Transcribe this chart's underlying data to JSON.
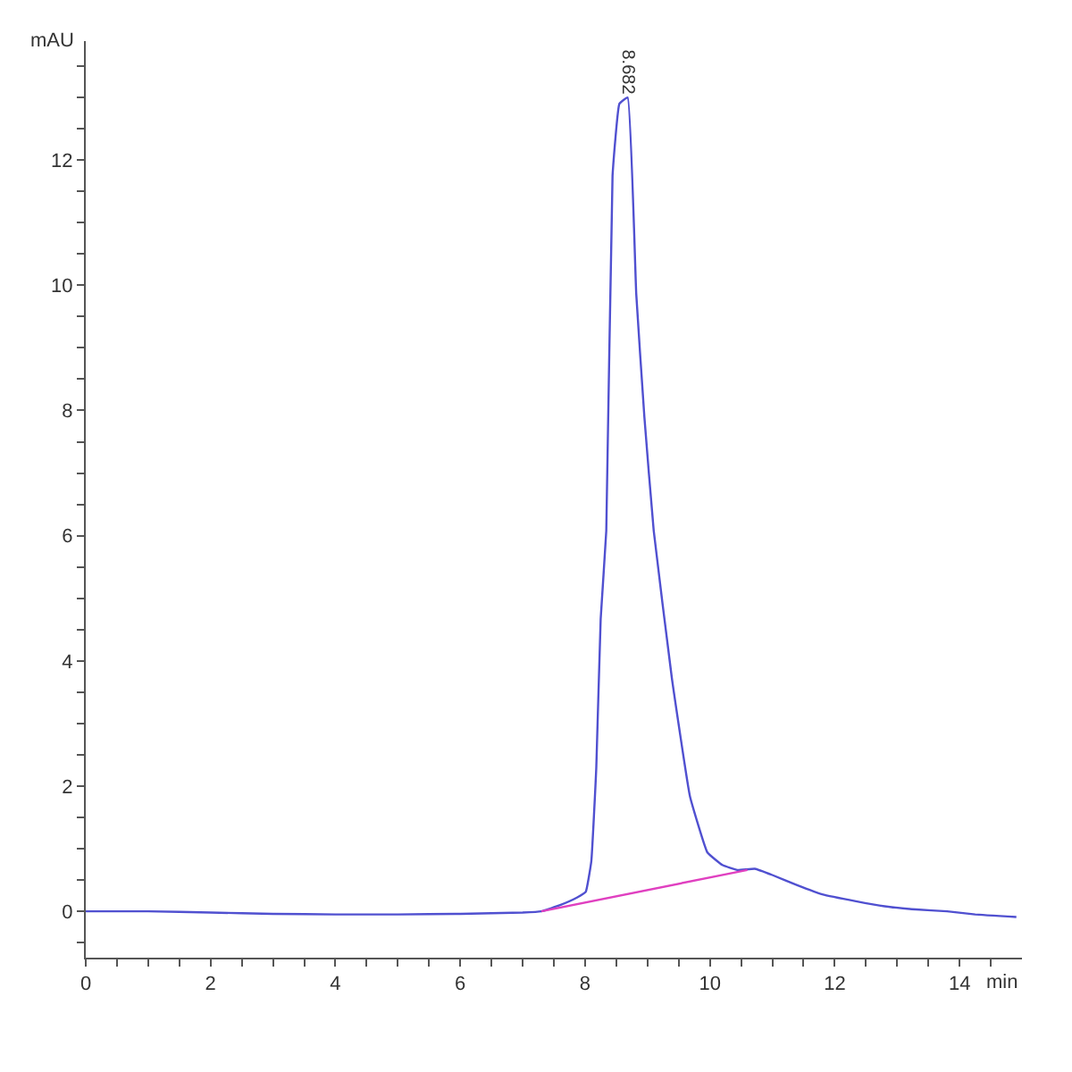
{
  "chart_data": {
    "type": "line",
    "xlabel": "min",
    "ylabel": "mAU",
    "xlim": [
      0,
      15
    ],
    "ylim": [
      -0.74,
      13.9
    ],
    "xticks": [
      0,
      {
        "value": 0.5,
        "label": null
      },
      {
        "value": 1,
        "label": null
      },
      {
        "value": 1.5,
        "label": null
      },
      2,
      {
        "value": 2.5,
        "label": null
      },
      {
        "value": 3,
        "label": null
      },
      {
        "value": 3.5,
        "label": null
      },
      4,
      {
        "value": 4.5,
        "label": null
      },
      {
        "value": 5,
        "label": null
      },
      {
        "value": 5.5,
        "label": null
      },
      6,
      {
        "value": 6.5,
        "label": null
      },
      {
        "value": 7,
        "label": null
      },
      {
        "value": 7.5,
        "label": null
      },
      8,
      {
        "value": 8.5,
        "label": null
      },
      {
        "value": 9,
        "label": null
      },
      {
        "value": 9.5,
        "label": null
      },
      10,
      {
        "value": 10.5,
        "label": null
      },
      {
        "value": 11,
        "label": null
      },
      {
        "value": 11.5,
        "label": null
      },
      12,
      {
        "value": 12.5,
        "label": null
      },
      {
        "value": 13,
        "label": null
      },
      {
        "value": 13.5,
        "label": null
      },
      14,
      {
        "value": 14.5,
        "label": null
      }
    ],
    "yticks": [
      {
        "value": -0.5,
        "label": null
      },
      0,
      {
        "value": 0.5,
        "label": null
      },
      {
        "value": 1,
        "label": null
      },
      {
        "value": 1.5,
        "label": null
      },
      2,
      {
        "value": 2.5,
        "label": null
      },
      {
        "value": 3,
        "label": null
      },
      {
        "value": 3.5,
        "label": null
      },
      4,
      {
        "value": 4.5,
        "label": null
      },
      {
        "value": 5,
        "label": null
      },
      {
        "value": 5.5,
        "label": null
      },
      6,
      {
        "value": 6.5,
        "label": null
      },
      {
        "value": 7,
        "label": null
      },
      {
        "value": 7.5,
        "label": null
      },
      8,
      {
        "value": 8.5,
        "label": null
      },
      {
        "value": 9,
        "label": null
      },
      {
        "value": 9.5,
        "label": null
      },
      10,
      {
        "value": 10.5,
        "label": null
      },
      {
        "value": 11,
        "label": null
      },
      {
        "value": 11.5,
        "label": null
      },
      12,
      {
        "value": 12.5,
        "label": null
      },
      {
        "value": 13,
        "label": null
      },
      {
        "value": 13.5,
        "label": null
      }
    ],
    "legend": false,
    "marker": "none",
    "line_style": "solid",
    "annotations": [
      {
        "text": "8.682",
        "x": 8.682,
        "y": 13.0
      }
    ],
    "series": [
      {
        "color": "#5050d0",
        "x": [
          0,
          1,
          2,
          3,
          4,
          5,
          6,
          7,
          7.3,
          7.6,
          7.87,
          8.01,
          8.1,
          8.18,
          8.25,
          8.34,
          8.44,
          8.55,
          8.682,
          8.82,
          8.95,
          9.1,
          9.39,
          9.68,
          9.96,
          10.2,
          10.44,
          10.72,
          11.0,
          11.39,
          11.8,
          12.34,
          12.8,
          13.3,
          13.8,
          14.25,
          14.91
        ],
        "values": [
          0,
          0,
          -0.02,
          -0.04,
          -0.05,
          -0.05,
          -0.04,
          -0.02,
          0,
          0.1,
          0.22,
          0.31,
          0.8,
          2.3,
          4.67,
          6.08,
          11.75,
          12.9,
          13.0,
          9.86,
          7.9,
          6.08,
          3.73,
          1.84,
          0.94,
          0.74,
          0.66,
          0.68,
          0.58,
          0.42,
          0.27,
          0.16,
          0.08,
          0.03,
          0,
          -0.05,
          -0.09
        ]
      },
      {
        "color": "#e040c0",
        "x": [
          7.3,
          10.6
        ],
        "values": [
          0,
          0.66
        ]
      }
    ]
  }
}
